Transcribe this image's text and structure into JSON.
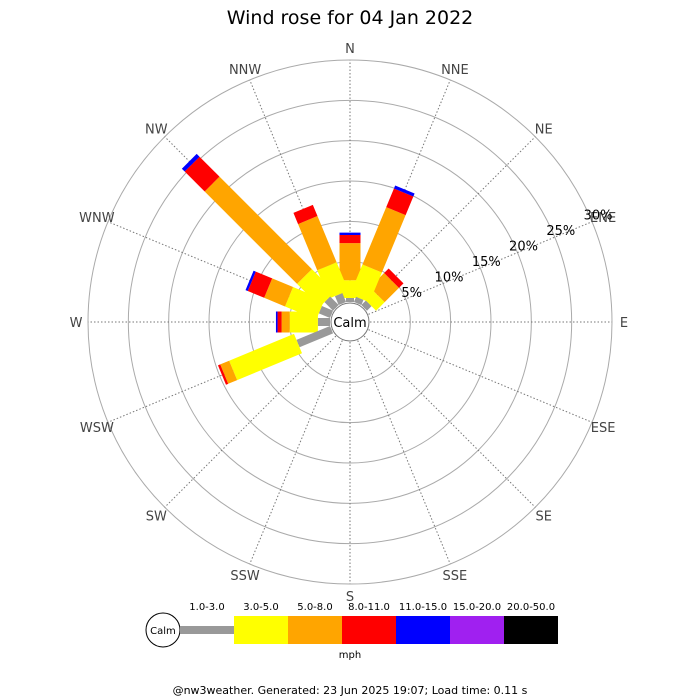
{
  "chart_data": {
    "type": "polar-bar",
    "title": "Wind rose for 04 Jan 2022",
    "directions": [
      "N",
      "NNE",
      "NE",
      "ENE",
      "E",
      "ESE",
      "SE",
      "SSE",
      "S",
      "SSW",
      "SW",
      "WSW",
      "W",
      "WNW",
      "NW",
      "NNW"
    ],
    "ring_labels": [
      "5%",
      "10%",
      "15%",
      "20%",
      "25%",
      "30%"
    ],
    "ring_values": [
      5,
      10,
      15,
      20,
      25,
      30
    ],
    "rmax": 30,
    "calm_label": "Calm",
    "unit_label": "mph",
    "bins": [
      {
        "label": "1.0-3.0",
        "color": "#999999"
      },
      {
        "label": "3.0-5.0",
        "color": "#ffff00"
      },
      {
        "label": "5.0-8.0",
        "color": "#ffa500"
      },
      {
        "label": "8.0-11.0",
        "color": "#ff0000"
      },
      {
        "label": "11.0-15.0",
        "color": "#0000ff"
      },
      {
        "label": "15.0-20.0",
        "color": "#a020f0"
      },
      {
        "label": "20.0-50.0",
        "color": "#000000"
      }
    ],
    "series": [
      {
        "direction": "N",
        "values": [
          0.5,
          2.2,
          4.6,
          1.0,
          0.3,
          0,
          0
        ]
      },
      {
        "direction": "NNE",
        "values": [
          0.7,
          4.0,
          7.7,
          2.5,
          0.4,
          0,
          0
        ]
      },
      {
        "direction": "NE",
        "values": [
          0.8,
          1.5,
          2.5,
          0.8,
          0,
          0,
          0
        ]
      },
      {
        "direction": "ENE",
        "values": [
          0,
          0,
          0,
          0,
          0,
          0,
          0
        ]
      },
      {
        "direction": "E",
        "values": [
          0,
          0,
          0,
          0,
          0,
          0,
          0
        ]
      },
      {
        "direction": "ESE",
        "values": [
          0,
          0,
          0,
          0,
          0,
          0,
          0
        ]
      },
      {
        "direction": "SE",
        "values": [
          0,
          0,
          0,
          0,
          0,
          0,
          0
        ]
      },
      {
        "direction": "SSE",
        "values": [
          0,
          0,
          0,
          0,
          0,
          0,
          0
        ]
      },
      {
        "direction": "S",
        "values": [
          0,
          0,
          0,
          0,
          0,
          0,
          0
        ]
      },
      {
        "direction": "SSW",
        "values": [
          0,
          0,
          0,
          0,
          0,
          0,
          0
        ]
      },
      {
        "direction": "SW",
        "values": [
          0,
          0,
          0,
          0,
          0,
          0,
          0
        ]
      },
      {
        "direction": "WSW",
        "values": [
          4.5,
          8.7,
          1.2,
          0.3,
          0,
          0,
          0
        ]
      },
      {
        "direction": "W",
        "values": [
          1.5,
          3.5,
          1.0,
          0.5,
          0.2,
          0,
          0
        ]
      },
      {
        "direction": "WNW",
        "values": [
          1.5,
          4.2,
          2.8,
          2.2,
          0.3,
          0,
          0
        ]
      },
      {
        "direction": "NW",
        "values": [
          1.5,
          4.0,
          16.2,
          3.5,
          0.5,
          0,
          0
        ]
      },
      {
        "direction": "NNW",
        "values": [
          1.2,
          3.8,
          6.2,
          1.5,
          0,
          0,
          0
        ]
      }
    ]
  },
  "footer": "@nw3weather. Generated: 23 Jun 2025 19:07; Load time: 0.11 s"
}
